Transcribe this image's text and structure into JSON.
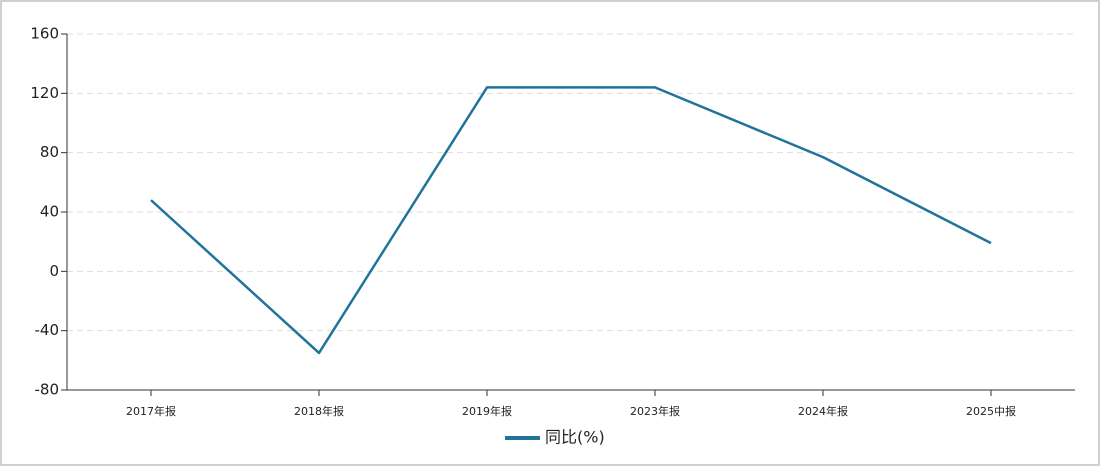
{
  "chart_data": {
    "type": "line",
    "categories": [
      "2017年报",
      "2018年报",
      "2019年报",
      "2023年报",
      "2024年报",
      "2025中报"
    ],
    "series": [
      {
        "name": "同比(%)",
        "color": "#21739c",
        "values": [
          48,
          -55,
          124,
          124,
          77,
          19
        ]
      }
    ],
    "ylim": [
      -80,
      160
    ],
    "yticks": [
      -80,
      -40,
      0,
      40,
      80,
      120,
      160
    ],
    "grid": true,
    "legend": "bottom"
  }
}
